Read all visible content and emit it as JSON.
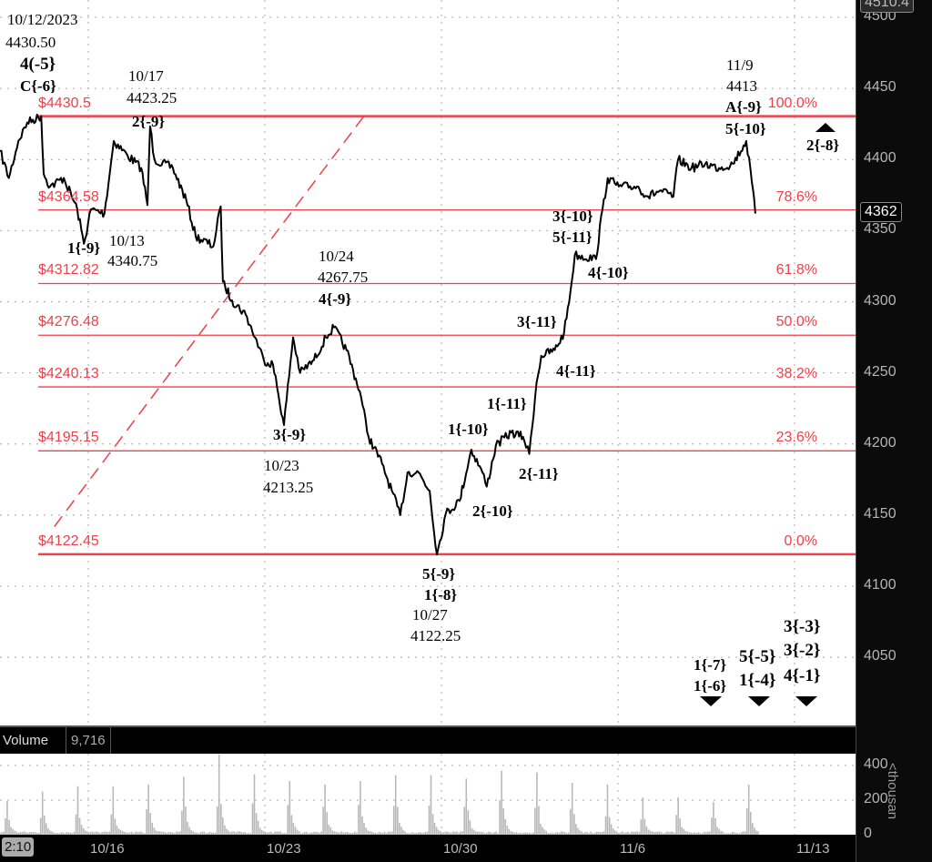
{
  "chart_data": {
    "type": "line",
    "title": "",
    "price_axis": {
      "ticks": [
        4500,
        4450,
        4400,
        4350,
        4300,
        4250,
        4200,
        4150,
        4100,
        4050
      ],
      "range": [
        4010,
        4512
      ],
      "grid": true
    },
    "x_axis": {
      "ticks": [
        "10/16",
        "10/23",
        "10/30",
        "11/6",
        "11/13"
      ],
      "grid": true
    },
    "last_price_badge": "4362",
    "top_badge": "4510.4",
    "time_badge": "2:10",
    "price_color": "#000000",
    "fib_color": "#f0404a",
    "series": [
      [
        "10/11",
        "12:00",
        4406
      ],
      [
        "10/11",
        "18:00",
        4387
      ],
      [
        "10/12",
        "00:30",
        4413
      ],
      [
        "10/12",
        "06:30",
        4426
      ],
      [
        "10/12",
        "16:00",
        4430.5
      ],
      [
        "10/12",
        "17:40",
        4390
      ],
      [
        "10/12",
        "22:00",
        4381
      ],
      [
        "10/13",
        "07:20",
        4387
      ],
      [
        "10/13",
        "16:30",
        4365
      ],
      [
        "10/13",
        "21:00",
        4340.75
      ],
      [
        "10/16",
        "01:50",
        4365
      ],
      [
        "10/16",
        "11:00",
        4362
      ],
      [
        "10/16",
        "17:20",
        4413
      ],
      [
        "10/17",
        "02:36",
        4403
      ],
      [
        "10/17",
        "12:00",
        4394
      ],
      [
        "10/17",
        "16:12",
        4368
      ],
      [
        "10/17",
        "18:00",
        4423.25
      ],
      [
        "10/17",
        "21:00",
        4400
      ],
      [
        "10/18",
        "09:30",
        4394
      ],
      [
        "10/18",
        "18:40",
        4371
      ],
      [
        "10/19",
        "01:00",
        4346
      ],
      [
        "10/19",
        "13:00",
        4339
      ],
      [
        "10/19",
        "18:00",
        4367
      ],
      [
        "10/19",
        "19:30",
        4314
      ],
      [
        "10/20",
        "01:40",
        4301
      ],
      [
        "10/20",
        "11:00",
        4291
      ],
      [
        "10/20",
        "17:20",
        4275
      ],
      [
        "10/20",
        "23:20",
        4259
      ],
      [
        "10/23",
        "05:30",
        4256
      ],
      [
        "10/23",
        "13:00",
        4213.25
      ],
      [
        "10/23",
        "19:10",
        4275
      ],
      [
        "10/24",
        "00:00",
        4250
      ],
      [
        "10/24",
        "09:20",
        4259
      ],
      [
        "10/24",
        "17:30",
        4275
      ],
      [
        "10/24",
        "23:00",
        4282
      ],
      [
        "10/25",
        "07:30",
        4266
      ],
      [
        "10/25",
        "16:30",
        4237
      ],
      [
        "10/25",
        "22:30",
        4205
      ],
      [
        "10/26",
        "07:40",
        4186
      ],
      [
        "10/26",
        "20:00",
        4150
      ],
      [
        "10/27",
        "01:00",
        4180
      ],
      [
        "10/27",
        "08:30",
        4180
      ],
      [
        "10/27",
        "16:00",
        4167
      ],
      [
        "10/27",
        "21:00",
        4122.25
      ],
      [
        "10/30",
        "03:00",
        4151
      ],
      [
        "10/30",
        "12:20",
        4160
      ],
      [
        "10/30",
        "20:20",
        4196
      ],
      [
        "10/31",
        "03:50",
        4180
      ],
      [
        "10/31",
        "06:50",
        4170
      ],
      [
        "10/31",
        "13:00",
        4199
      ],
      [
        "10/31",
        "23:30",
        4208
      ],
      [
        "11/1",
        "07:30",
        4205
      ],
      [
        "11/1",
        "11:40",
        4193
      ],
      [
        "11/1",
        "16:40",
        4243
      ],
      [
        "11/1",
        "19:50",
        4262
      ],
      [
        "11/2",
        "05:00",
        4266
      ],
      [
        "11/2",
        "11:20",
        4278
      ],
      [
        "11/2",
        "15:40",
        4307
      ],
      [
        "11/2",
        "18:40",
        4333
      ],
      [
        "11/3",
        "09:00",
        4330
      ],
      [
        "11/3",
        "13:30",
        4365
      ],
      [
        "11/3",
        "17:00",
        4387
      ],
      [
        "11/6",
        "00:30",
        4381
      ],
      [
        "11/6",
        "13:00",
        4381
      ],
      [
        "11/6",
        "20:30",
        4374
      ],
      [
        "11/7",
        "04:20",
        4378
      ],
      [
        "11/7",
        "13:40",
        4374
      ],
      [
        "11/7",
        "16:50",
        4400
      ],
      [
        "11/8",
        "02:00",
        4394
      ],
      [
        "11/8",
        "11:20",
        4397
      ],
      [
        "11/8",
        "20:40",
        4394
      ],
      [
        "11/9",
        "06:00",
        4397
      ],
      [
        "11/9",
        "15:10",
        4413
      ],
      [
        "11/9",
        "19:00",
        4384
      ],
      [
        "11/9",
        "21:20",
        4362
      ]
    ],
    "fib_levels": [
      {
        "price": 4430.5,
        "label": "$4430.5",
        "pct": "100.0%"
      },
      {
        "price": 4364.58,
        "label": "$4364.58",
        "pct": "78.6%"
      },
      {
        "price": 4312.82,
        "label": "$4312.82",
        "pct": "61.8%"
      },
      {
        "price": 4276.48,
        "label": "$4276.48",
        "pct": "50.0%"
      },
      {
        "price": 4240.13,
        "label": "$4240.13",
        "pct": "38.2%"
      },
      {
        "price": 4195.15,
        "label": "$4195.15",
        "pct": "23.6%"
      },
      {
        "price": 4122.45,
        "label": "$4122.45",
        "pct": "0.0%"
      }
    ],
    "trendline": {
      "style": "dashed",
      "color": "#f0404a",
      "from": [
        "10/13",
        "01:00",
        4142
      ],
      "to": [
        "10/25",
        "19:20",
        4430.5
      ]
    },
    "volume": {
      "title": "Volume",
      "value": "9,716",
      "unit_label": "<thousan",
      "ticks": [
        400,
        200,
        0
      ],
      "color": "#b8b8b8",
      "daily_peak_thousands": [
        [
          "10/11",
          195
        ],
        [
          "10/12",
          250
        ],
        [
          "10/13",
          280
        ],
        [
          "10/16",
          280
        ],
        [
          "10/17",
          290
        ],
        [
          "10/18",
          335
        ],
        [
          "10/19",
          465
        ],
        [
          "10/20",
          350
        ],
        [
          "10/23",
          310
        ],
        [
          "10/24",
          290
        ],
        [
          "10/25",
          310
        ],
        [
          "10/26",
          345
        ],
        [
          "10/27",
          345
        ],
        [
          "10/30",
          325
        ],
        [
          "10/31",
          370
        ],
        [
          "11/1",
          360
        ],
        [
          "11/2",
          300
        ],
        [
          "11/3",
          290
        ],
        [
          "11/6",
          215
        ],
        [
          "11/7",
          215
        ],
        [
          "11/8",
          190
        ],
        [
          "11/9",
          290
        ]
      ]
    }
  },
  "annotations": {
    "a1": "10/12/2023",
    "a2": "4430.50",
    "a3": "4(-5}",
    "a4": "C{-6}",
    "b1": "10/17",
    "b2": "4423.25",
    "b3": "2{-9}",
    "c1": "1{-9}",
    "c2": "10/13",
    "c3": "4340.75",
    "d1": "10/24",
    "d2": "4267.75",
    "d3": "4{-9}",
    "e1": "3{-9}",
    "e2": "10/23",
    "e3": "4213.25",
    "f1": "5{-9}",
    "f2": "1{-8}",
    "f3": "10/27",
    "f4": "4122.25",
    "g1": "2{-10}",
    "g2": "1{-10}",
    "g3": "2{-11}",
    "g4": "1{-11}",
    "g5": "4{-11}",
    "g6": "3{-11}",
    "g7": "4{-10}",
    "g8": "5{-11}",
    "g9": "3{-10}",
    "h1": "11/9",
    "h2": "4413",
    "h3": "A{-9}",
    "h4": "5{-10}",
    "i1": "2{-8}",
    "j1": "1{-7}",
    "j2": "1{-6}",
    "k1": "5{-5}",
    "k2": "1{-4}",
    "l1": "3{-3}",
    "l2": "3{-2}",
    "l3": "4{-1}"
  }
}
